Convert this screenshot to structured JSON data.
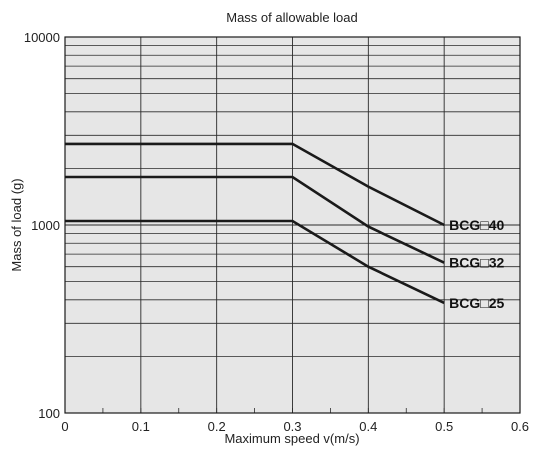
{
  "chart_data": {
    "type": "line",
    "title": "Mass of allowable load",
    "xlabel": "Maximum speed v(m/s)",
    "ylabel": "Mass of load (g)",
    "xlim": [
      0,
      0.6
    ],
    "ylim": [
      100,
      10000
    ],
    "yscale": "log",
    "grid": true,
    "x_ticks": [
      "0",
      "0.1",
      "0.2",
      "0.3",
      "0.4",
      "0.5",
      "0.6"
    ],
    "y_ticks": [
      "100",
      "1000",
      "10000"
    ],
    "series": [
      {
        "name": "BCG□40",
        "x": [
          0,
          0.3,
          0.4,
          0.5
        ],
        "y": [
          2700,
          2700,
          1600,
          1000
        ]
      },
      {
        "name": "BCG□32",
        "x": [
          0,
          0.3,
          0.4,
          0.5
        ],
        "y": [
          1800,
          1800,
          980,
          630
        ]
      },
      {
        "name": "BCG□25",
        "x": [
          0,
          0.3,
          0.4,
          0.5
        ],
        "y": [
          1050,
          1050,
          600,
          385
        ]
      }
    ],
    "colors": {
      "background": "#e6e6e6",
      "grid": "#2a2a2a",
      "line": "#1a1a1a"
    }
  }
}
